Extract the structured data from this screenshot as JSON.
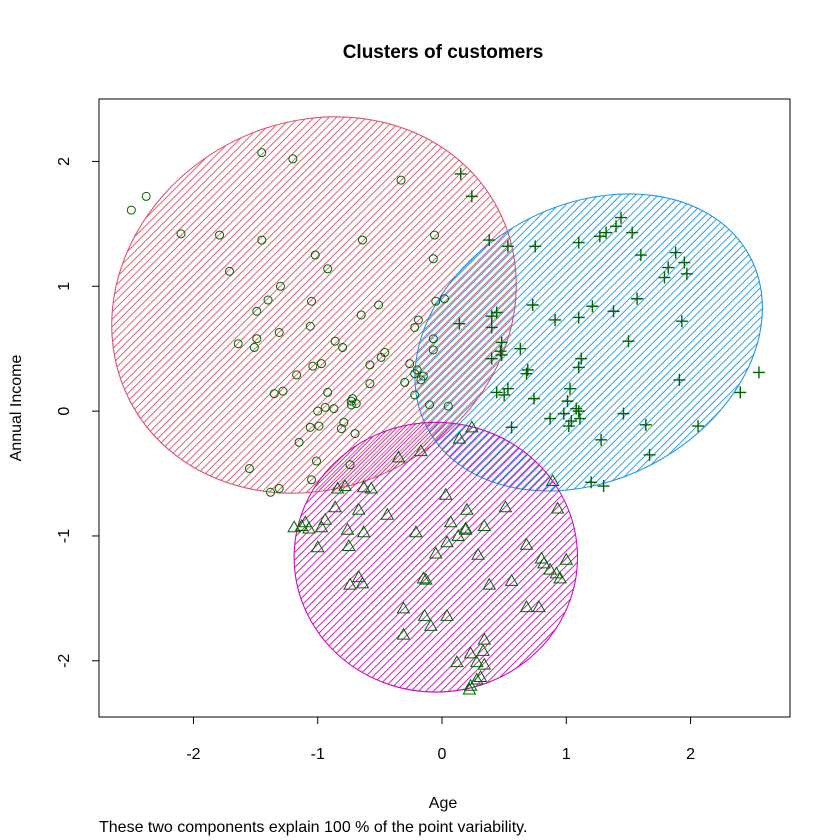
{
  "chart_data": {
    "type": "scatter",
    "title": "Clusters of customers",
    "xlabel": "Age",
    "ylabel": "Annual Income",
    "subtitle": "These two components explain 100 % of the point variability.",
    "xlim": [
      -2.76,
      2.8
    ],
    "ylim": [
      -2.45,
      2.5
    ],
    "xticks": [
      -2,
      -1,
      0,
      1,
      2
    ],
    "yticks": [
      -2,
      -1,
      0,
      1,
      2
    ],
    "xtick_labels": [
      "-2",
      "-1",
      "0",
      "1",
      "2"
    ],
    "ytick_labels": [
      "-2",
      "-1",
      "0",
      "1",
      "2"
    ],
    "grid": false,
    "point_color": "#006400",
    "clusters": [
      {
        "marker": "circle",
        "ellipse_color": "#DF536B",
        "ellipse": {
          "cx": -1.03,
          "cy": 0.85,
          "rx": 1.67,
          "ry": 1.46,
          "angle": -28
        },
        "points": [
          [
            -2.5,
            1.61
          ],
          [
            -2.38,
            1.72
          ],
          [
            -2.1,
            1.42
          ],
          [
            -1.79,
            1.41
          ],
          [
            -1.71,
            1.12
          ],
          [
            -1.45,
            2.07
          ],
          [
            -1.45,
            1.37
          ],
          [
            -1.2,
            2.02
          ],
          [
            -1.02,
            1.25
          ],
          [
            -0.92,
            1.14
          ],
          [
            -0.64,
            1.37
          ],
          [
            -0.33,
            1.85
          ],
          [
            -0.06,
            1.41
          ],
          [
            -0.07,
            1.22
          ],
          [
            -1.3,
            1.0
          ],
          [
            -1.05,
            0.88
          ],
          [
            -1.4,
            0.89
          ],
          [
            -1.49,
            0.8
          ],
          [
            -1.64,
            0.54
          ],
          [
            -1.49,
            0.58
          ],
          [
            -1.51,
            0.51
          ],
          [
            -1.31,
            0.63
          ],
          [
            -1.06,
            0.68
          ],
          [
            -1.04,
            0.36
          ],
          [
            -0.97,
            0.38
          ],
          [
            -1.17,
            0.29
          ],
          [
            -1.28,
            0.16
          ],
          [
            -1.35,
            0.14
          ],
          [
            -0.92,
            0.15
          ],
          [
            -0.86,
            0.56
          ],
          [
            -0.8,
            0.51
          ],
          [
            -0.65,
            0.77
          ],
          [
            -0.51,
            0.85
          ],
          [
            -0.22,
            0.67
          ],
          [
            -0.19,
            0.73
          ],
          [
            -0.05,
            0.88
          ],
          [
            0.02,
            0.9
          ],
          [
            -0.07,
            0.49
          ],
          [
            -0.07,
            0.58
          ],
          [
            -0.46,
            0.47
          ],
          [
            -0.49,
            0.43
          ],
          [
            -0.58,
            0.37
          ],
          [
            -0.58,
            0.22
          ],
          [
            -0.2,
            0.33
          ],
          [
            -0.17,
            0.25
          ],
          [
            -0.15,
            0.28
          ],
          [
            -0.3,
            0.23
          ],
          [
            -0.22,
            0.3
          ],
          [
            -0.26,
            0.38
          ],
          [
            -0.1,
            0.05
          ],
          [
            0.05,
            0.04
          ],
          [
            -0.22,
            0.13
          ],
          [
            -0.72,
            0.1
          ],
          [
            -0.73,
            0.08
          ],
          [
            -0.73,
            0.05
          ],
          [
            -0.69,
            0.06
          ],
          [
            -0.87,
            0.02
          ],
          [
            -0.94,
            0.03
          ],
          [
            -1.0,
            0.0
          ],
          [
            -0.99,
            -0.12
          ],
          [
            -1.06,
            -0.13
          ],
          [
            -0.79,
            -0.09
          ],
          [
            -0.81,
            -0.14
          ],
          [
            -0.7,
            -0.18
          ],
          [
            -1.01,
            -0.4
          ],
          [
            -0.74,
            -0.43
          ],
          [
            -1.15,
            -0.25
          ],
          [
            -1.05,
            -0.55
          ],
          [
            -1.55,
            -0.46
          ],
          [
            -1.38,
            -0.65
          ],
          [
            -1.31,
            -0.62
          ]
        ]
      },
      {
        "marker": "plus",
        "ellipse_color": "#2297E6",
        "ellipse": {
          "cx": 1.18,
          "cy": 0.55,
          "rx": 1.47,
          "ry": 1.1,
          "angle": -28
        },
        "points": [
          [
            0.15,
            1.9
          ],
          [
            0.24,
            1.72
          ],
          [
            0.38,
            1.37
          ],
          [
            0.53,
            1.32
          ],
          [
            0.75,
            1.32
          ],
          [
            1.1,
            1.35
          ],
          [
            1.27,
            1.4
          ],
          [
            1.32,
            1.43
          ],
          [
            1.4,
            1.48
          ],
          [
            1.44,
            1.55
          ],
          [
            1.53,
            1.43
          ],
          [
            1.6,
            1.25
          ],
          [
            1.88,
            1.27
          ],
          [
            1.95,
            1.19
          ],
          [
            1.82,
            1.15
          ],
          [
            1.79,
            1.07
          ],
          [
            1.97,
            1.1
          ],
          [
            1.57,
            0.9
          ],
          [
            1.38,
            0.8
          ],
          [
            1.21,
            0.84
          ],
          [
            1.1,
            0.75
          ],
          [
            0.91,
            0.73
          ],
          [
            0.73,
            0.85
          ],
          [
            1.93,
            0.72
          ],
          [
            1.5,
            0.56
          ],
          [
            1.12,
            0.42
          ],
          [
            1.1,
            0.35
          ],
          [
            0.63,
            0.5
          ],
          [
            0.48,
            0.45
          ],
          [
            0.47,
            0.48
          ],
          [
            0.4,
            0.42
          ],
          [
            0.4,
            0.67
          ],
          [
            0.4,
            0.76
          ],
          [
            0.44,
            0.79
          ],
          [
            0.48,
            0.55
          ],
          [
            0.68,
            0.3
          ],
          [
            0.69,
            0.33
          ],
          [
            0.53,
            0.18
          ],
          [
            0.44,
            0.15
          ],
          [
            0.5,
            0.13
          ],
          [
            0.74,
            0.1
          ],
          [
            0.14,
            0.7
          ],
          [
            1.03,
            0.18
          ],
          [
            1.01,
            0.08
          ],
          [
            1.08,
            0.02
          ],
          [
            1.1,
            0.0
          ],
          [
            1.46,
            -0.02
          ],
          [
            0.87,
            -0.06
          ],
          [
            0.98,
            -0.02
          ],
          [
            1.04,
            -0.08
          ],
          [
            1.02,
            -0.12
          ],
          [
            1.11,
            -0.06
          ],
          [
            1.64,
            -0.11
          ],
          [
            1.91,
            0.25
          ],
          [
            2.06,
            -0.12
          ],
          [
            2.4,
            0.15
          ],
          [
            2.55,
            0.31
          ],
          [
            1.28,
            -0.23
          ],
          [
            1.67,
            -0.35
          ],
          [
            0.56,
            -0.13
          ],
          [
            1.2,
            -0.57
          ],
          [
            1.3,
            -0.6
          ]
        ]
      },
      {
        "marker": "triangle",
        "ellipse_color": "#CD0BBC",
        "ellipse": {
          "cx": -0.05,
          "cy": -1.17,
          "rx": 1.14,
          "ry": 1.08,
          "angle": 0
        },
        "points": [
          [
            0.14,
            -0.22
          ],
          [
            0.24,
            -0.13
          ],
          [
            -0.35,
            -0.37
          ],
          [
            -0.17,
            -0.32
          ],
          [
            -1.19,
            -0.93
          ],
          [
            -1.13,
            -0.92
          ],
          [
            -1.1,
            -0.89
          ],
          [
            -1.07,
            -0.94
          ],
          [
            -0.97,
            -0.93
          ],
          [
            -0.94,
            -0.87
          ],
          [
            -1.0,
            -1.09
          ],
          [
            -0.86,
            -0.77
          ],
          [
            -0.76,
            -0.95
          ],
          [
            -0.75,
            -1.08
          ],
          [
            -0.63,
            -0.61
          ],
          [
            -0.57,
            -0.62
          ],
          [
            -0.67,
            -0.79
          ],
          [
            -0.63,
            -0.97
          ],
          [
            -0.44,
            -0.83
          ],
          [
            -0.21,
            -0.97
          ],
          [
            0.03,
            -0.67
          ],
          [
            0.07,
            -0.89
          ],
          [
            0.2,
            -0.79
          ],
          [
            0.19,
            -0.94
          ],
          [
            0.34,
            -0.92
          ],
          [
            0.51,
            -0.77
          ],
          [
            0.89,
            -0.56
          ],
          [
            0.93,
            -0.78
          ],
          [
            -0.05,
            -1.14
          ],
          [
            0.04,
            -1.05
          ],
          [
            0.13,
            -1.0
          ],
          [
            0.19,
            -0.95
          ],
          [
            0.29,
            -1.15
          ],
          [
            0.68,
            -1.07
          ],
          [
            0.8,
            -1.18
          ],
          [
            0.82,
            -1.22
          ],
          [
            0.87,
            -1.27
          ],
          [
            0.92,
            -1.3
          ],
          [
            0.95,
            -1.34
          ],
          [
            1.0,
            -1.19
          ],
          [
            -0.74,
            -1.39
          ],
          [
            -0.67,
            -1.33
          ],
          [
            -0.64,
            -1.38
          ],
          [
            -0.15,
            -1.34
          ],
          [
            -0.13,
            -1.35
          ],
          [
            0.38,
            -1.39
          ],
          [
            0.56,
            -1.36
          ],
          [
            -0.31,
            -1.58
          ],
          [
            -0.14,
            -1.64
          ],
          [
            -0.09,
            -1.72
          ],
          [
            0.04,
            -1.64
          ],
          [
            0.68,
            -1.57
          ],
          [
            0.78,
            -1.57
          ],
          [
            -0.31,
            -1.79
          ],
          [
            0.12,
            -2.01
          ],
          [
            0.23,
            -1.94
          ],
          [
            0.34,
            -1.83
          ],
          [
            0.33,
            -1.92
          ],
          [
            0.34,
            -2.03
          ],
          [
            0.28,
            -2.01
          ],
          [
            0.31,
            -2.13
          ],
          [
            0.28,
            -2.15
          ],
          [
            0.23,
            -2.2
          ],
          [
            0.22,
            -2.23
          ],
          [
            -0.78,
            -0.6
          ],
          [
            -0.84,
            -0.62
          ]
        ]
      }
    ]
  }
}
